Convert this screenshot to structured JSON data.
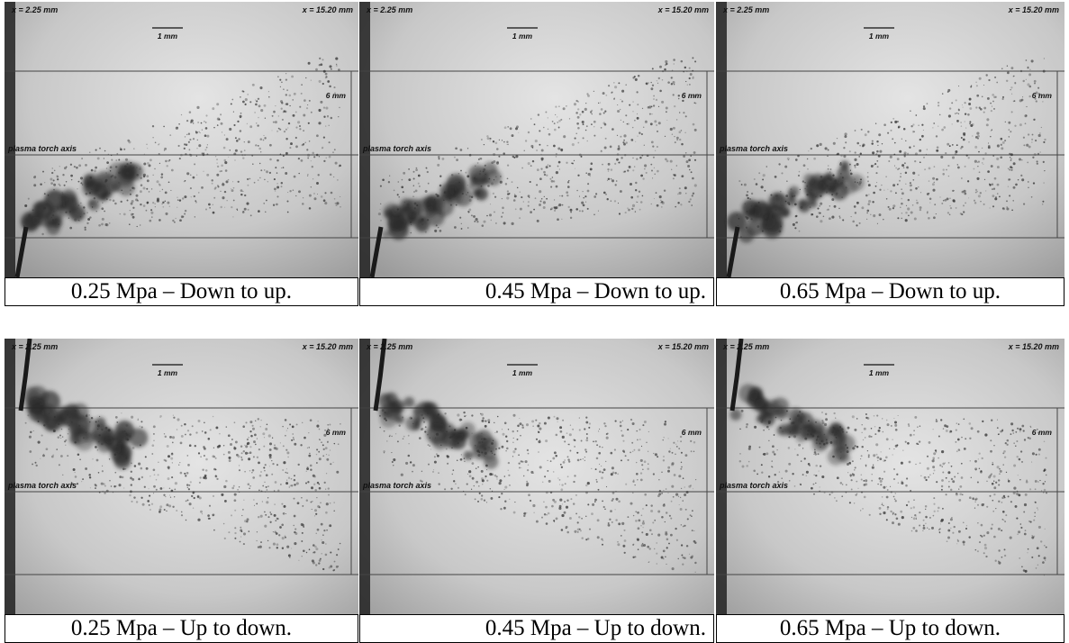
{
  "panels": [
    {
      "id": "p1",
      "caption": "0.25 Mpa – Down to up.",
      "x_left": "x = 2.25 mm",
      "x_right": "x = 15.20 mm",
      "scale": "1 mm",
      "height_label": "6 mm",
      "axis_label": "plasma torch axis",
      "direction": "down-to-up"
    },
    {
      "id": "p2",
      "caption": "0.45 Mpa – Down to up.",
      "x_left": "x = 2.25 mm",
      "x_right": "x = 15.20 mm",
      "scale": "1 mm",
      "height_label": "6 mm",
      "axis_label": "plasma torch axis",
      "direction": "down-to-up"
    },
    {
      "id": "p3",
      "caption": "0.65 Mpa – Down to up.",
      "x_left": "x = 2.25 mm",
      "x_right": "x = 15.20 mm",
      "scale": "1 mm",
      "height_label": "6 mm",
      "axis_label": "plasma torch axis",
      "direction": "down-to-up"
    },
    {
      "id": "p4",
      "caption": "0.25 Mpa – Up to down.",
      "x_left": "x = 2.25 mm",
      "x_right": "x = 15.20 mm",
      "scale": "1 mm",
      "height_label": "6 mm",
      "axis_label": "plasma torch axis",
      "direction": "up-to-down"
    },
    {
      "id": "p5",
      "caption": "0.45 Mpa – Up to down.",
      "x_left": "x = 2.25 mm",
      "x_right": "x = 15.20 mm",
      "scale": "1 mm",
      "height_label": "6 mm",
      "axis_label": "plasma torch axis",
      "direction": "up-to-down"
    },
    {
      "id": "p6",
      "caption": "0.65 Mpa – Up to down.",
      "x_left": "x = 2.25 mm",
      "x_right": "x = 15.20 mm",
      "scale": "1 mm",
      "height_label": "6 mm",
      "axis_label": "plasma torch axis",
      "direction": "up-to-down"
    }
  ]
}
